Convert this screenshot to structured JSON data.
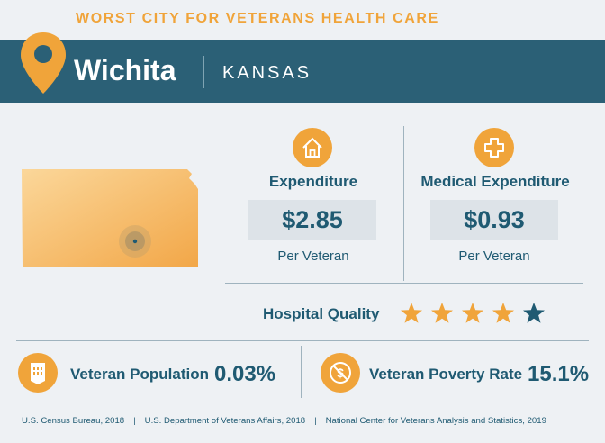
{
  "header": {
    "title": "WORST CITY FOR VETERANS HEALTH CARE",
    "city": "Wichita",
    "state": "KANSAS"
  },
  "expenditure": {
    "label": "Expenditure",
    "value": "$2.85",
    "unit": "Per Veteran",
    "icon": "house-icon"
  },
  "medical_expenditure": {
    "label": "Medical Expenditure",
    "value": "$0.93",
    "unit": "Per Veteran",
    "icon": "medical-cross-icon"
  },
  "hospital_quality": {
    "label": "Hospital Quality",
    "rating": 4,
    "max": 5
  },
  "veteran_population": {
    "label": "Veteran Population",
    "value": "0.03%",
    "icon": "rank-insignia-icon"
  },
  "veteran_poverty": {
    "label": "Veteran Poverty Rate",
    "value": "15.1%",
    "icon": "no-dollar-icon"
  },
  "sources": [
    "U.S. Census Bureau, 2018",
    "U.S. Department of Veterans Affairs, 2018",
    "National Center for Veterans Analysis and Statistics, 2019"
  ],
  "colors": {
    "accent": "#f0a43a",
    "banner": "#2b6076",
    "text": "#1f5a72",
    "background": "#eef1f4"
  }
}
